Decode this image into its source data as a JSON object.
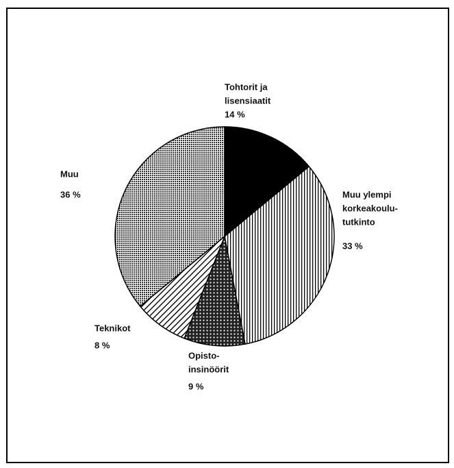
{
  "chart_data": {
    "type": "pie",
    "categories": [
      [
        "Tohtorit ja",
        "lisensiaatit"
      ],
      [
        "Muu ylempi",
        "korkeakoulu-",
        "tutkinto"
      ],
      [
        "Opisto-",
        "insinöörit"
      ],
      [
        "Teknikot"
      ],
      [
        "Muu"
      ]
    ],
    "values": [
      14,
      33,
      9,
      8,
      36
    ],
    "value_labels": [
      "14 %",
      "33 %",
      "9 %",
      "8 %",
      "36 %"
    ]
  }
}
